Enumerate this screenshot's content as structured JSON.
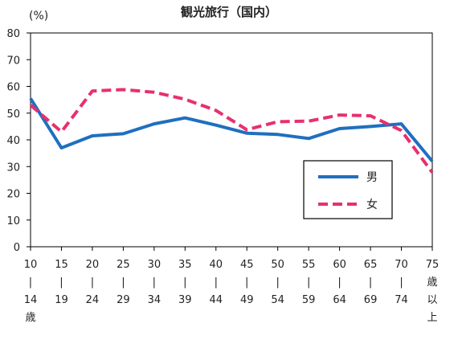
{
  "chart_data": {
    "type": "line",
    "title": "観光旅行（国内）",
    "ylabel": "(%)",
    "ylim": [
      0,
      80
    ],
    "yticks": [
      0,
      10,
      20,
      30,
      40,
      50,
      60,
      70,
      80
    ],
    "grid": false,
    "legend_position": "right",
    "categories": [
      [
        "10",
        "|",
        "14",
        "歳"
      ],
      [
        "15",
        "|",
        "19"
      ],
      [
        "20",
        "|",
        "24"
      ],
      [
        "25",
        "|",
        "29"
      ],
      [
        "30",
        "|",
        "34"
      ],
      [
        "35",
        "|",
        "39"
      ],
      [
        "40",
        "|",
        "44"
      ],
      [
        "45",
        "|",
        "49"
      ],
      [
        "50",
        "|",
        "54"
      ],
      [
        "55",
        "|",
        "59"
      ],
      [
        "60",
        "|",
        "64"
      ],
      [
        "65",
        "|",
        "69"
      ],
      [
        "70",
        "|",
        "74"
      ],
      [
        "75",
        "歳",
        "以",
        "上"
      ]
    ],
    "series": [
      {
        "name": "男",
        "color": "#1f6fbf",
        "style": "solid",
        "values": [
          55.5,
          37.0,
          41.5,
          42.3,
          46.0,
          48.2,
          45.5,
          42.5,
          42.0,
          40.5,
          44.2,
          45.0,
          46.0,
          32.0
        ]
      },
      {
        "name": "女",
        "color": "#e8306e",
        "style": "dashed",
        "values": [
          53.0,
          43.0,
          58.3,
          58.8,
          57.8,
          55.2,
          51.0,
          43.8,
          46.8,
          47.0,
          49.3,
          49.0,
          43.5,
          27.8
        ]
      }
    ]
  }
}
